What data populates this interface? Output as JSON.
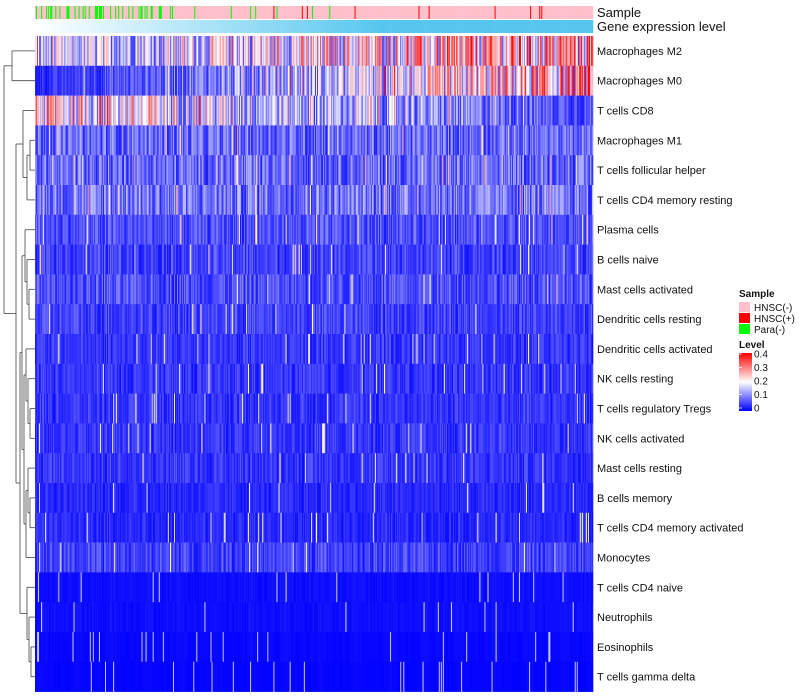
{
  "chart_data": {
    "type": "heatmap",
    "title": "",
    "annotation_tracks": [
      {
        "name": "Sample",
        "label": "Sample"
      },
      {
        "name": "Gene expression level",
        "label": "Gene expression level",
        "colors": [
          "#ffffff",
          "#56c6ef"
        ]
      }
    ],
    "sample_groups": [
      {
        "name": "HNSC(-)",
        "color": "#ffc0cb"
      },
      {
        "name": "HNSC(+)",
        "color": "#ff0000"
      },
      {
        "name": "Para(-)",
        "color": "#00ff00"
      }
    ],
    "rows": [
      {
        "label": "Macrophages M2",
        "mean": 0.22
      },
      {
        "label": "Macrophages M0",
        "mean": 0.14
      },
      {
        "label": "T cells CD8",
        "mean": 0.12
      },
      {
        "label": "Macrophages M1",
        "mean": 0.08
      },
      {
        "label": "T cells follicular helper",
        "mean": 0.08
      },
      {
        "label": "T cells CD4 memory resting",
        "mean": 0.09
      },
      {
        "label": "Plasma cells",
        "mean": 0.06
      },
      {
        "label": "B cells naive",
        "mean": 0.05
      },
      {
        "label": "Mast cells activated",
        "mean": 0.06
      },
      {
        "label": "Dendritic cells resting",
        "mean": 0.05
      },
      {
        "label": "Dendritic cells activated",
        "mean": 0.04
      },
      {
        "label": "NK cells resting",
        "mean": 0.04
      },
      {
        "label": "T cells regulatory  Tregs",
        "mean": 0.04
      },
      {
        "label": "NK cells activated",
        "mean": 0.04
      },
      {
        "label": "Mast cells resting",
        "mean": 0.04
      },
      {
        "label": "B cells memory",
        "mean": 0.03
      },
      {
        "label": "T cells CD4 memory activated",
        "mean": 0.03
      },
      {
        "label": "Monocytes",
        "mean": 0.05
      },
      {
        "label": "T cells CD4 naive",
        "mean": 0.01
      },
      {
        "label": "Neutrophils",
        "mean": 0.01
      },
      {
        "label": "Eosinophils",
        "mean": 0.005
      },
      {
        "label": "T cells gamma delta",
        "mean": 0.003
      }
    ],
    "color_scale": {
      "name": "Level",
      "min": 0,
      "max": 0.4,
      "ticks": [
        "0.4",
        "0.3",
        "0.2",
        "0.1",
        "0"
      ],
      "colors": [
        "#0000ff",
        "#ffffff",
        "#ff0000"
      ]
    },
    "legend": {
      "sample_title": "Sample",
      "level_title": "Level",
      "placement": "right"
    },
    "n_samples": 550,
    "dendrogram": "rows"
  }
}
